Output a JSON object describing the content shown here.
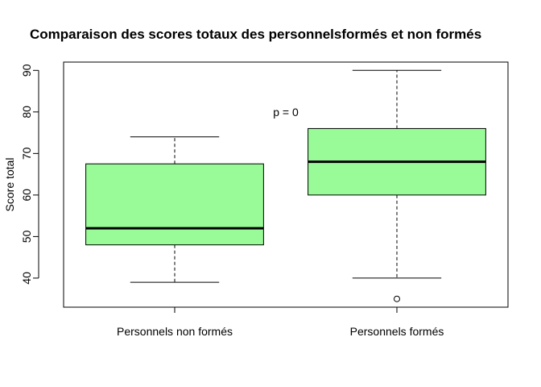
{
  "chart_data": {
    "type": "boxplot",
    "title": "Comparaison des scores totaux des personnelsformés et non formés",
    "xlabel": "",
    "ylabel": "Score total",
    "ylim": [
      33,
      92
    ],
    "yticks": [
      40,
      50,
      60,
      70,
      80,
      90
    ],
    "grid": false,
    "box_color": "#98fb98",
    "categories": [
      "Personnels non formés",
      "Personnels formés"
    ],
    "boxes": [
      {
        "min": 39,
        "q1": 48,
        "median": 52,
        "q3": 67.5,
        "max": 74,
        "outliers": []
      },
      {
        "min": 40,
        "q1": 60,
        "median": 68,
        "q3": 76,
        "max": 90,
        "outliers": [
          35
        ]
      }
    ],
    "annotation": {
      "text": "p = 0",
      "x": 1.5,
      "y": 80
    }
  }
}
